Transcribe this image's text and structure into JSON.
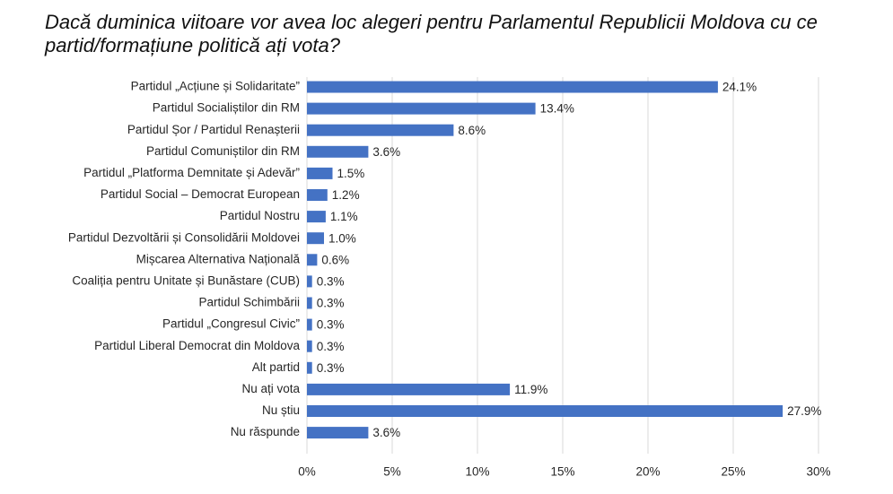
{
  "chart_data": {
    "type": "bar",
    "orientation": "horizontal",
    "title": "Dacă duminica viitoare vor avea loc alegeri pentru Parlamentul Republicii Moldova cu ce partid/formațiune politică ați vota?",
    "categories": [
      "Partidul „Acțiune și Solidaritate”",
      "Partidul Socialiștilor din RM",
      "Partidul Șor / Partidul Renașterii",
      "Partidul Comuniștilor din RM",
      "Partidul „Platforma Demnitate și Adevăr”",
      "Partidul Social – Democrat European",
      "Partidul Nostru",
      "Partidul Dezvoltării și Consolidării Moldovei",
      "Mișcarea Alternativa Națională",
      "Coaliția pentru Unitate și Bunăstare (CUB)",
      "Partidul Schimbării",
      "Partidul „Congresul Civic”",
      "Partidul Liberal Democrat din Moldova",
      "Alt partid",
      "Nu ați vota",
      "Nu știu",
      "Nu răspunde"
    ],
    "values": [
      24.1,
      13.4,
      8.6,
      3.6,
      1.5,
      1.2,
      1.1,
      1.0,
      0.6,
      0.3,
      0.3,
      0.3,
      0.3,
      0.3,
      11.9,
      27.9,
      3.6
    ],
    "value_labels": [
      "24.1%",
      "13.4%",
      "8.6%",
      "3.6%",
      "1.5%",
      "1.2%",
      "1.1%",
      "1.0%",
      "0.6%",
      "0.3%",
      "0.3%",
      "0.3%",
      "0.3%",
      "0.3%",
      "11.9%",
      "27.9%",
      "3.6%"
    ],
    "xlim": [
      0,
      30
    ],
    "xticks": [
      0,
      5,
      10,
      15,
      20,
      25,
      30
    ],
    "xtick_labels": [
      "0%",
      "5%",
      "10%",
      "15%",
      "20%",
      "25%",
      "30%"
    ],
    "grid": true,
    "bar_color": "#4472c4"
  }
}
